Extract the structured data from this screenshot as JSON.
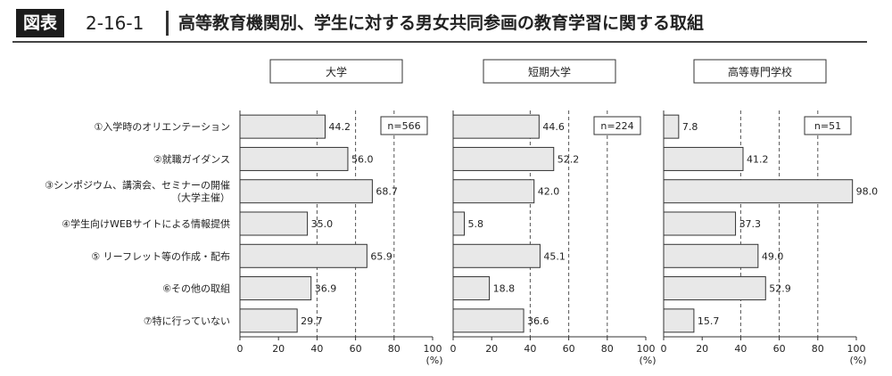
{
  "header": {
    "badge": "図表",
    "number": "2-16-1",
    "title": "高等教育機関別、学生に対する男女共同参画の教育学習に関する取組"
  },
  "chart_data": {
    "type": "bar",
    "orientation": "horizontal",
    "categories": [
      [
        "①入学時のオリエンテーション"
      ],
      [
        "②就職ガイダンス"
      ],
      [
        "③シンポジウム、講演会、セミナーの開催",
        "（大学主催）"
      ],
      [
        "④学生向けWEBサイトによる情報提供"
      ],
      [
        "⑤ リーフレット等の作成・配布"
      ],
      [
        "⑥その他の取組"
      ],
      [
        "⑦特に行っていない"
      ]
    ],
    "xlim": [
      0,
      100
    ],
    "ticks": [
      0,
      20,
      40,
      60,
      80,
      100
    ],
    "unit": "(%)",
    "grid": "dashed vertical at 40, 60, 80",
    "panels": [
      {
        "name": "大学",
        "n_label": "n=566",
        "values": [
          44.2,
          56.0,
          68.7,
          35.0,
          65.9,
          36.9,
          29.7
        ]
      },
      {
        "name": "短期大学",
        "n_label": "n=224",
        "values": [
          44.6,
          52.2,
          42.0,
          5.8,
          45.1,
          18.8,
          36.6
        ]
      },
      {
        "name": "高等専門学校",
        "n_label": "n=51",
        "values": [
          7.8,
          41.2,
          98.0,
          37.3,
          49.0,
          52.9,
          15.7
        ]
      }
    ],
    "colors": {
      "bar_fill": "#e8e8e8",
      "bar_stroke": "#333333",
      "axis": "#333333"
    }
  }
}
